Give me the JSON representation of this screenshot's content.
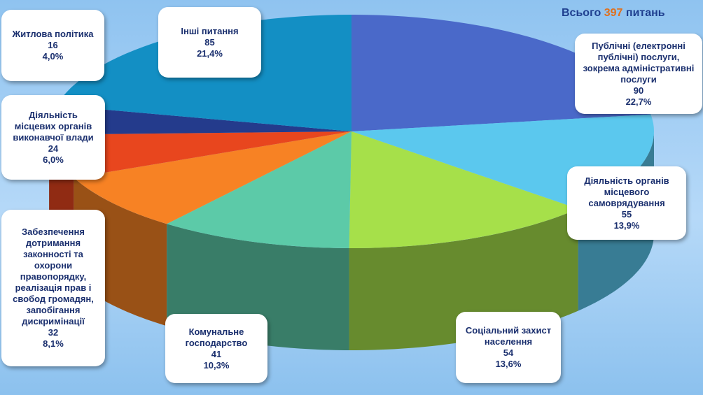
{
  "header": {
    "total_prefix": "Всього",
    "total_value": "397",
    "total_suffix": "питань"
  },
  "chart_data": {
    "type": "pie",
    "title": "",
    "total": 397,
    "slices": [
      {
        "label": "Публічні (електронні публічні) послуги, зокрема адміністративні послуги",
        "value": 90,
        "percent": "22,7%",
        "color": "#4a69c9"
      },
      {
        "label": "Діяльність органів місцевого самоврядування",
        "value": 55,
        "percent": "13,9%",
        "color": "#5bc8ee"
      },
      {
        "label": "Соціальний захист населення",
        "value": 54,
        "percent": "13,6%",
        "color": "#a6e04a"
      },
      {
        "label": "Комунальне господарство",
        "value": 41,
        "percent": "10,3%",
        "color": "#5ccaa8"
      },
      {
        "label": "Забезпечення дотримання законності та охорони правопорядку, реалізація прав і свобод громадян, запобігання дискримінації",
        "value": 32,
        "percent": "8,1%",
        "color": "#f78224"
      },
      {
        "label": "Діяльність місцевих органів виконавчої влади",
        "value": 24,
        "percent": "6,0%",
        "color": "#e8461e"
      },
      {
        "label": "Житлова політика",
        "value": 16,
        "percent": "4,0%",
        "color": "#243b8c"
      },
      {
        "label": "Інші питання",
        "value": 85,
        "percent": "21,4%",
        "color": "#138fc4"
      }
    ]
  },
  "labels": [
    {
      "lines": [
        "Публічні (електронні",
        "публічні) послуги,",
        "зокрема адміністративні",
        "послуги"
      ],
      "value": "90",
      "percent": "22,7%"
    },
    {
      "lines": [
        "Діяльність органів",
        "місцевого",
        "самоврядування"
      ],
      "value": "55",
      "percent": "13,9%"
    },
    {
      "lines": [
        "Соціальний захист",
        "населення"
      ],
      "value": "54",
      "percent": "13,6%"
    },
    {
      "lines": [
        "Комунальне",
        "господарство"
      ],
      "value": "41",
      "percent": "10,3%"
    },
    {
      "lines": [
        "Забезпечення",
        "дотримання",
        "законності та",
        "охорони",
        "правопорядку,",
        "реалізація прав і",
        "свобод громадян,",
        "запобігання",
        "дискримінації"
      ],
      "value": "32",
      "percent": "8,1%"
    },
    {
      "lines": [
        "Діяльність",
        "місцевих органів",
        "виконавчої влади"
      ],
      "value": "24",
      "percent": "6,0%"
    },
    {
      "lines": [
        "Житлова політика"
      ],
      "value": "16",
      "percent": "4,0%"
    },
    {
      "lines": [
        "Інші питання"
      ],
      "value": "85",
      "percent": "21,4%"
    }
  ]
}
